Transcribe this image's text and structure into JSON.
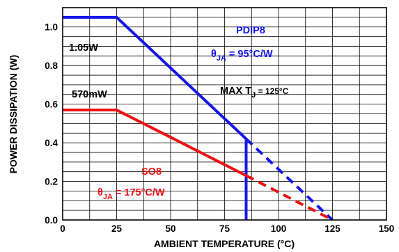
{
  "chart_data": {
    "type": "line",
    "title": "",
    "xlabel": "AMBIENT TEMPERATURE (°C)",
    "ylabel": "POWER DISSIPATION (W)",
    "xlim": [
      0,
      150
    ],
    "ylim": [
      0,
      1.1
    ],
    "x_ticks": [
      0,
      25,
      50,
      75,
      100,
      125,
      150
    ],
    "x_tick_labels": [
      "0",
      "25",
      "50",
      "75",
      "100",
      "125",
      "150"
    ],
    "y_ticks": [
      0.0,
      0.2,
      0.4,
      0.6,
      0.8,
      1.0
    ],
    "y_tick_labels": [
      "0.0",
      "0.2",
      "0.4",
      "0.6",
      "0.8",
      "1.0"
    ],
    "grid": true,
    "series": [
      {
        "name": "PDIP8",
        "color": "#1515e8",
        "solid": {
          "x": [
            0,
            25,
            85,
            85,
            85
          ],
          "y": [
            1.05,
            1.05,
            0.42,
            0.42,
            0.0
          ]
        },
        "dashed": {
          "x": [
            85,
            125
          ],
          "y": [
            0.42,
            0.0
          ]
        }
      },
      {
        "name": "SO8",
        "color": "#ee1111",
        "solid": {
          "x": [
            0,
            25,
            85
          ],
          "y": [
            0.57,
            0.57,
            0.23
          ]
        },
        "dashed": {
          "x": [
            85,
            125
          ],
          "y": [
            0.23,
            0.0
          ]
        }
      }
    ],
    "annotations": {
      "pdip_max": "1.05W",
      "so8_max": "570mW",
      "pdip_name": "PDIP8",
      "pdip_theta": "θ",
      "pdip_theta_sub": "JA",
      "pdip_theta_val": " = 95°C/W",
      "max_tj": "MAX T",
      "max_tj_sub": "J",
      "max_tj_val": " = 125°C",
      "so8_name": "SO8",
      "so8_theta": "θ",
      "so8_theta_sub": "JA",
      "so8_theta_val": " = 175°C/W"
    }
  }
}
